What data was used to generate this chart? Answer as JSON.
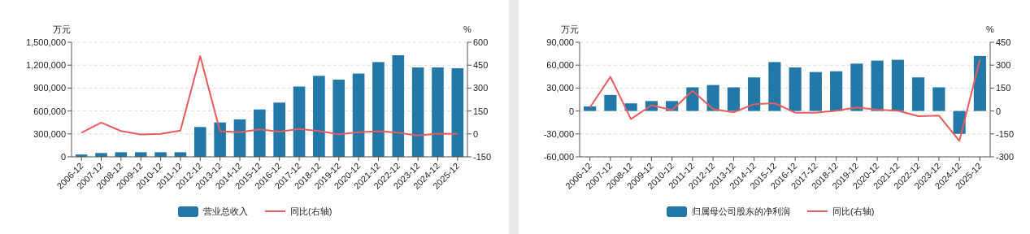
{
  "chart_data": [
    {
      "type": "bar",
      "categories": [
        "2006-12",
        "2007-12",
        "2008-12",
        "2009-12",
        "2010-12",
        "2011-12",
        "2012-12",
        "2013-12",
        "2014-12",
        "2015-12",
        "2016-12",
        "2017-12",
        "2018-12",
        "2019-12",
        "2020-12",
        "2021-12",
        "2022-12",
        "2023-12",
        "2024-12",
        "2025-12"
      ],
      "series": [
        {
          "name": "营业总收入",
          "color": "#2278a6",
          "values": [
            30000,
            50000,
            60000,
            60000,
            60000,
            60000,
            390000,
            450000,
            490000,
            620000,
            710000,
            920000,
            1060000,
            1010000,
            1090000,
            1240000,
            1330000,
            1170000,
            1170000,
            1160000
          ]
        },
        {
          "name": "同比(右轴)",
          "type": "line",
          "axis": "y2",
          "color": "#e85c5c",
          "values": [
            8,
            74,
            19,
            -4,
            0,
            21,
            509,
            17,
            11,
            30,
            15,
            32,
            19,
            -2,
            11,
            17,
            8,
            -11,
            2,
            0
          ]
        }
      ],
      "ylabel": "万元",
      "y2label": "%",
      "ylim": [
        0,
        1500000
      ],
      "yticks": [
        0,
        {
          "value": 300000,
          "label": "300,000"
        },
        {
          "value": 600000,
          "label": "600,000"
        },
        {
          "value": 900000,
          "label": "900,000"
        },
        {
          "value": 1200000,
          "label": "1,200,000"
        },
        {
          "value": 1500000,
          "label": "1,500,000"
        }
      ],
      "y2lim": [
        -150,
        600
      ],
      "y2ticks": [
        -150,
        0,
        150,
        300,
        450,
        600
      ],
      "grid": "y",
      "legend": "bottom",
      "marker": "none",
      "line_style": "solid"
    },
    {
      "type": "bar",
      "categories": [
        "2006-12",
        "2007-12",
        "2008-12",
        "2009-12",
        "2010-12",
        "2011-12",
        "2012-12",
        "2013-12",
        "2014-12",
        "2015-12",
        "2016-12",
        "2017-12",
        "2018-12",
        "2019-12",
        "2020-12",
        "2021-12",
        "2022-12",
        "2023-12",
        "2024-12",
        "2025-12"
      ],
      "series": [
        {
          "name": "归属母公司股东的净利润",
          "color": "#2278a6",
          "values": [
            6000,
            21000,
            10000,
            13000,
            13000,
            31000,
            34000,
            31000,
            44000,
            64000,
            57000,
            51000,
            52000,
            62000,
            66000,
            67000,
            44000,
            31000,
            -30000,
            72000
          ]
        },
        {
          "name": "同比(右轴)",
          "type": "line",
          "axis": "y2",
          "color": "#e85c5c",
          "values": [
            23,
            224,
            -53,
            38,
            6,
            132,
            13,
            -9,
            45,
            51,
            -11,
            -11,
            2,
            23,
            9,
            2,
            -34,
            -30,
            -196,
            337
          ]
        }
      ],
      "ylabel": "万元",
      "y2label": "%",
      "ylim": [
        -60000,
        90000
      ],
      "yticks": [
        {
          "value": -60000,
          "label": "-60,000"
        },
        {
          "value": -30000,
          "label": "-30,000"
        },
        0,
        {
          "value": 30000,
          "label": "30,000"
        },
        {
          "value": 60000,
          "label": "60,000"
        },
        {
          "value": 90000,
          "label": "90,000"
        }
      ],
      "y2lim": [
        -300,
        450
      ],
      "y2ticks": [
        -300,
        -150,
        0,
        150,
        300,
        450
      ],
      "grid": "y",
      "legend": "bottom",
      "marker": "none",
      "line_style": "solid"
    }
  ]
}
